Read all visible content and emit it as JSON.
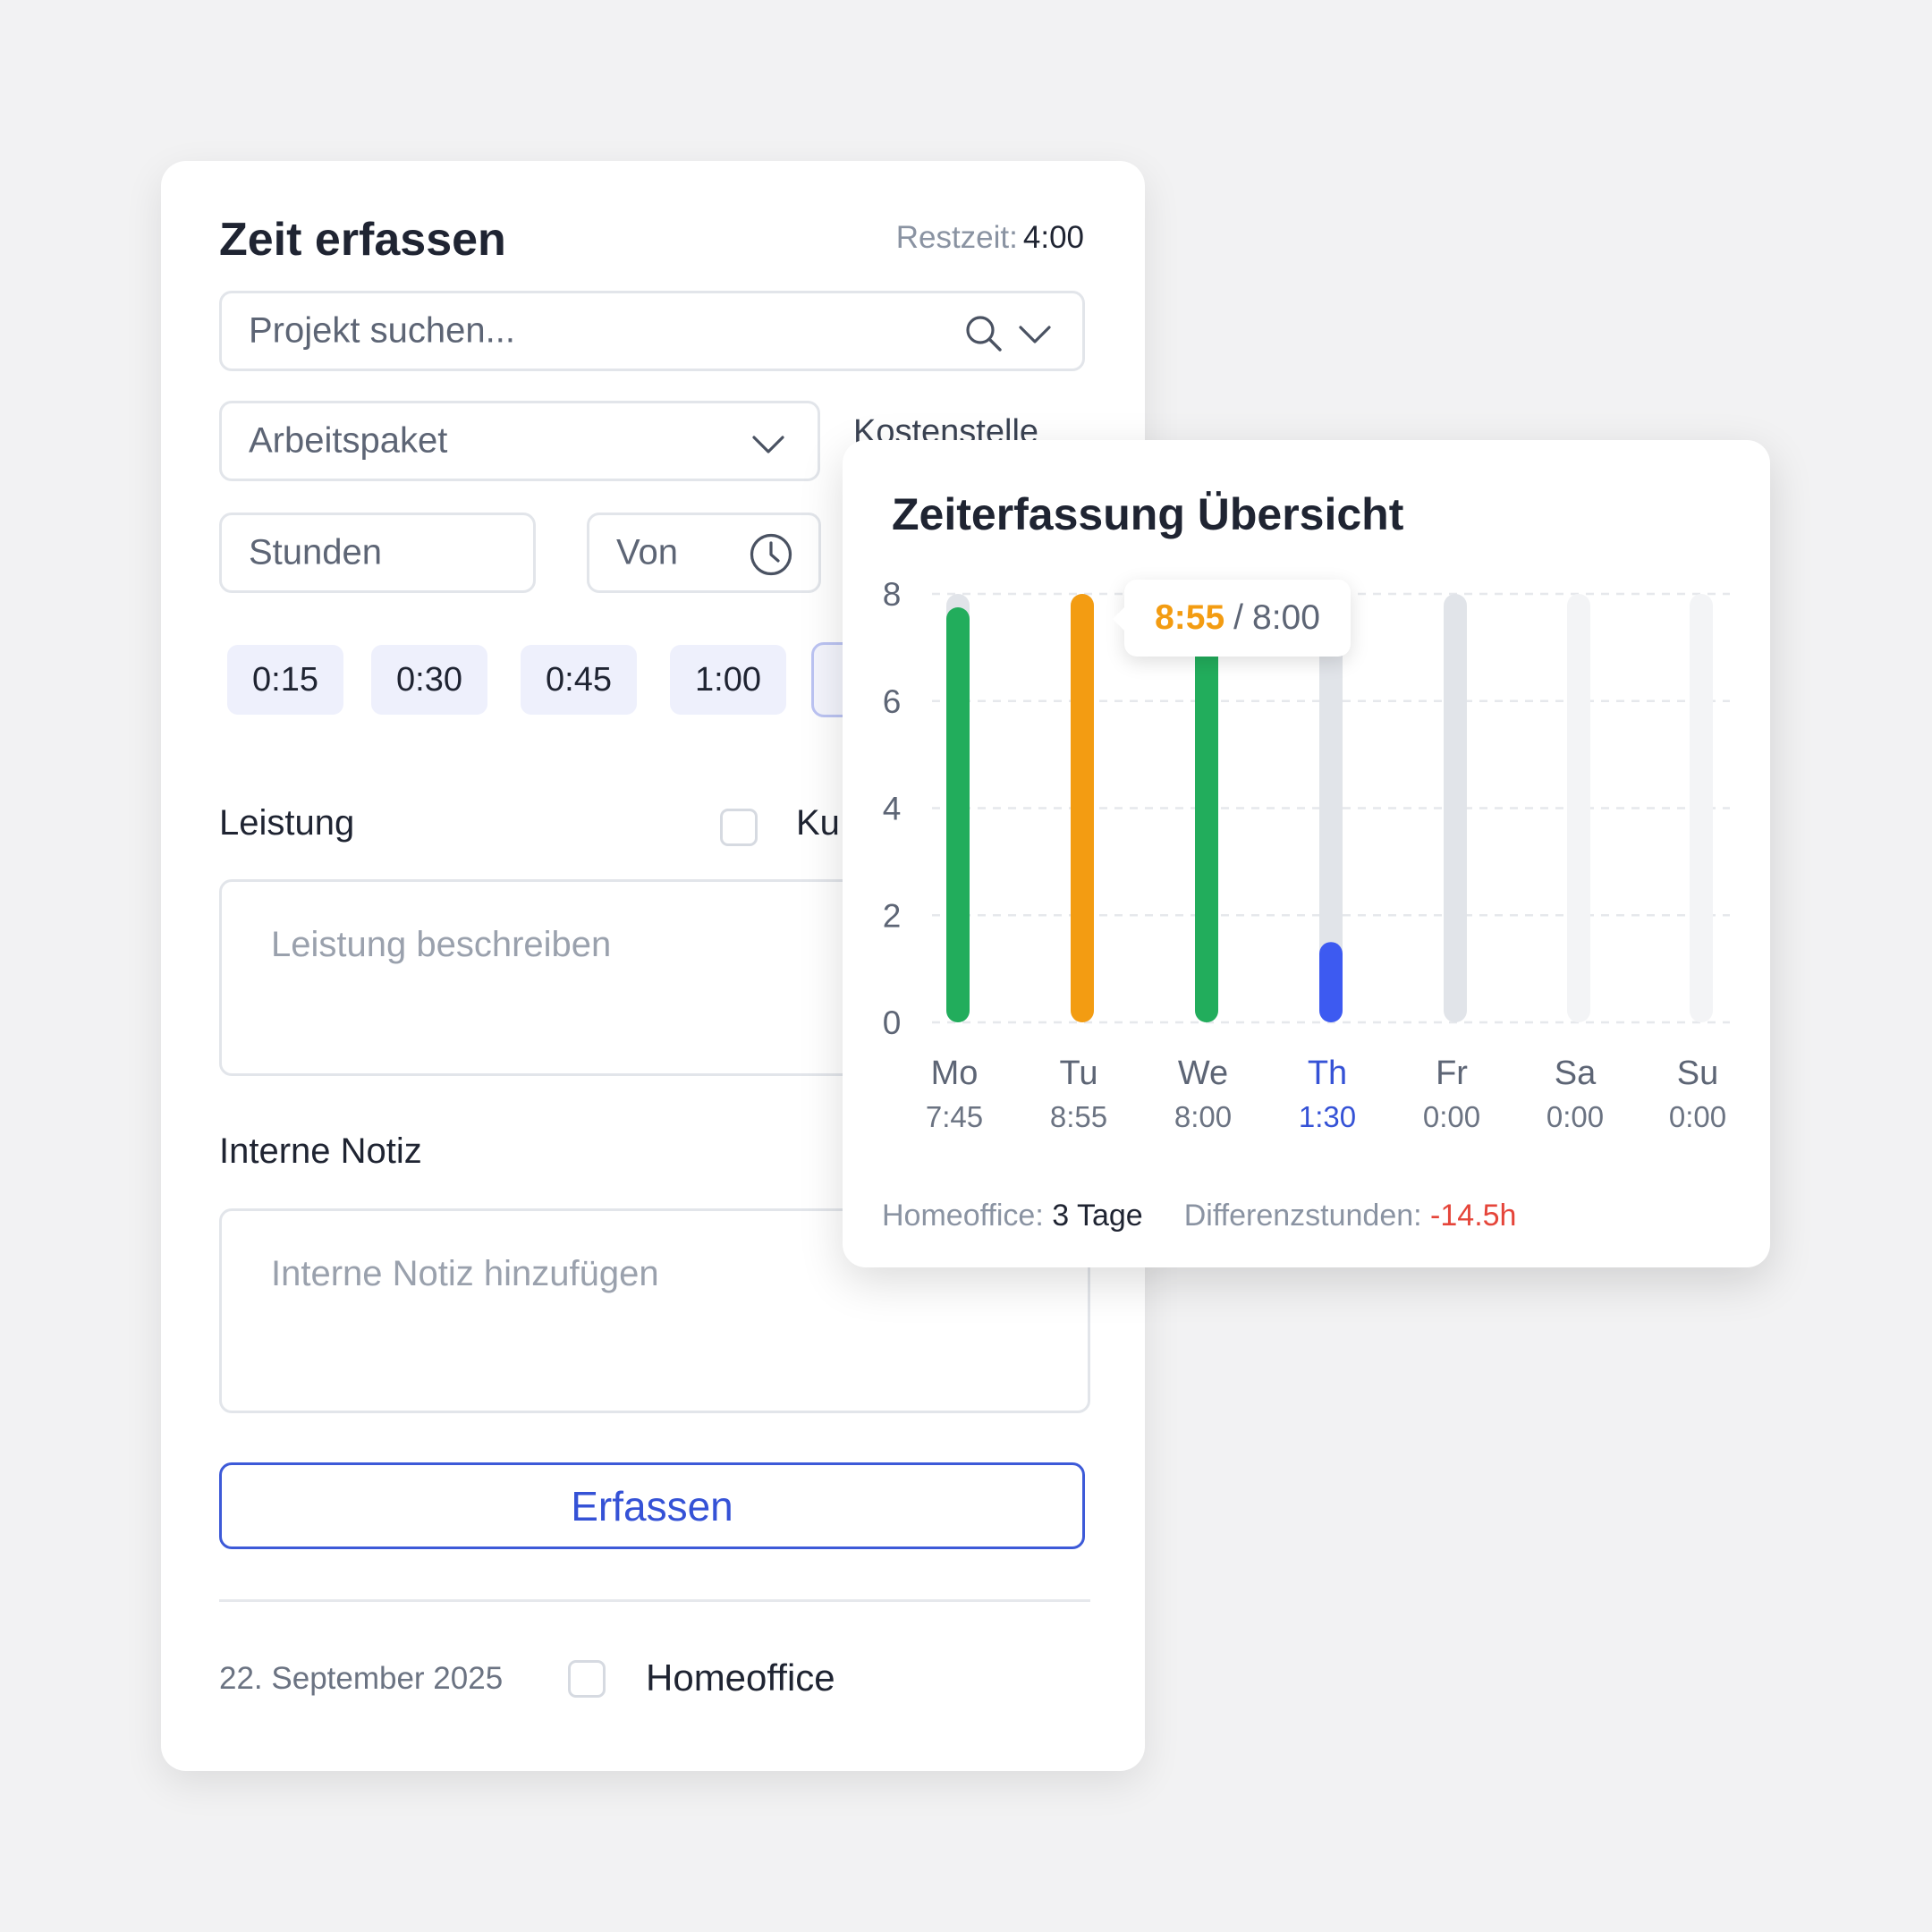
{
  "form": {
    "title": "Zeit erfassen",
    "restzeit_label": "Restzeit:",
    "restzeit_value": "4:00",
    "search_placeholder": "Projekt suchen...",
    "arbeitspaket_placeholder": "Arbeitspaket",
    "kostenstelle_label": "Kostenstelle",
    "stunden_placeholder": "Stunden",
    "von_placeholder": "Von",
    "quick_times": [
      "0:15",
      "0:30",
      "0:45",
      "1:00"
    ],
    "leistung_label": "Leistung",
    "kunde_label_visible": "Ku",
    "leistung_placeholder": "Leistung beschreiben",
    "notiz_label": "Interne Notiz",
    "notiz_placeholder": "Interne Notiz hinzufügen",
    "submit_label": "Erfassen",
    "date": "22. September 2025",
    "homeoffice_label": "Homeoffice"
  },
  "overview": {
    "title": "Zeiterfassung Übersicht",
    "tooltip_actual": "8:55",
    "tooltip_sep": "/",
    "tooltip_target": "8:00",
    "footer": {
      "homeoffice_label": "Homeoffice:",
      "homeoffice_value": "3 Tage",
      "diff_label": "Differenzstunden:",
      "diff_value": "-14.5h"
    }
  },
  "colors": {
    "accent_blue": "#3552d6",
    "green": "#22ad5c",
    "orange": "#f39c12",
    "blue_bar": "#3d5af1",
    "track_gray": "#e1e4e9",
    "track_light": "#f3f4f6",
    "negative_red": "#e5453a"
  },
  "icons": {
    "search": "search-icon",
    "chevron": "chevron-down-icon",
    "clock": "clock-icon"
  },
  "chart_data": {
    "type": "bar",
    "categories": [
      "Mo",
      "Tu",
      "We",
      "Th",
      "Fr",
      "Sa",
      "Su"
    ],
    "value_labels": [
      "7:45",
      "8:55",
      "8:00",
      "1:30",
      "0:00",
      "0:00",
      "0:00"
    ],
    "values": [
      7.75,
      8.92,
      8.0,
      1.5,
      0,
      0,
      0
    ],
    "target": [
      8,
      8,
      8,
      8,
      8,
      0,
      0
    ],
    "bar_colors": [
      "#22ad5c",
      "#f39c12",
      "#22ad5c",
      "#3d5af1",
      "#e1e4e9",
      "#f3f4f6",
      "#f3f4f6"
    ],
    "highlight_category": "Th",
    "ylim": [
      0,
      8
    ],
    "yticks": [
      0,
      2,
      4,
      6,
      8
    ],
    "grid": true
  }
}
